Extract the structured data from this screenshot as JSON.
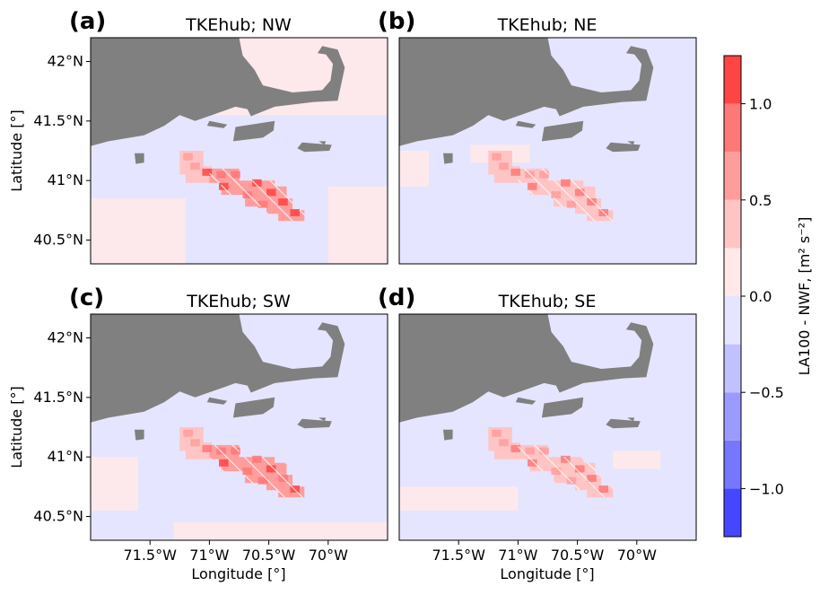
{
  "figure": {
    "colorbar": {
      "label": "LA100 - NWF,  [m² s⁻²]",
      "range": [
        -1.25,
        1.25
      ],
      "levels": [
        -1.25,
        -1.0,
        -0.75,
        -0.5,
        -0.25,
        0.0,
        0.25,
        0.5,
        0.75,
        1.0,
        1.25
      ],
      "colors": [
        "#4646ff",
        "#7676ff",
        "#9b9bff",
        "#c1c1ff",
        "#e5e5ff",
        "#ffe9e9",
        "#ffc4c4",
        "#ff9d9d",
        "#ff7878",
        "#ff4444"
      ],
      "ticks": [
        {
          "value": 1.0,
          "label": "1.0"
        },
        {
          "value": 0.5,
          "label": "0.5"
        },
        {
          "value": 0.0,
          "label": "0.0"
        },
        {
          "value": -0.5,
          "label": "−0.5"
        },
        {
          "value": -1.0,
          "label": "−1.0"
        }
      ]
    },
    "x_ticks": [
      {
        "value": -71.5,
        "label": "71.5°W"
      },
      {
        "value": -71.0,
        "label": "71°W"
      },
      {
        "value": -70.5,
        "label": "70.5°W"
      },
      {
        "value": -70.0,
        "label": "70°W"
      }
    ],
    "y_ticks": [
      {
        "value": 42.0,
        "label": "42°N"
      },
      {
        "value": 41.5,
        "label": "41.5°N"
      },
      {
        "value": 41.0,
        "label": "41°N"
      },
      {
        "value": 40.5,
        "label": "40.5°N"
      }
    ],
    "xlabel": "Longitude [°]",
    "ylabel": "Latitude [°]",
    "xlim": [
      -72.0,
      -69.5
    ],
    "ylim": [
      40.3,
      42.2
    ],
    "land_color": "#808080"
  },
  "chart_data": [
    {
      "type": "heatmap",
      "label": "(a)",
      "title": "TKEhub; NW",
      "wake_max": 1.2,
      "background": "#e5e5ff",
      "xlim": [
        -72.0,
        -69.5
      ],
      "ylim": [
        40.3,
        42.2
      ]
    },
    {
      "type": "heatmap",
      "label": "(b)",
      "title": "TKEhub; NE",
      "wake_max": 0.9,
      "background": "#e5e5ff",
      "xlim": [
        -72.0,
        -69.5
      ],
      "ylim": [
        40.3,
        42.2
      ]
    },
    {
      "type": "heatmap",
      "label": "(c)",
      "title": "TKEhub; SW",
      "wake_max": 1.1,
      "background": "#e5e5ff",
      "xlim": [
        -72.0,
        -69.5
      ],
      "ylim": [
        40.3,
        42.2
      ]
    },
    {
      "type": "heatmap",
      "label": "(d)",
      "title": "TKEhub; SE",
      "wake_max": 0.9,
      "background": "#e5e5ff",
      "xlim": [
        -72.0,
        -69.5
      ],
      "ylim": [
        40.3,
        42.2
      ]
    }
  ]
}
